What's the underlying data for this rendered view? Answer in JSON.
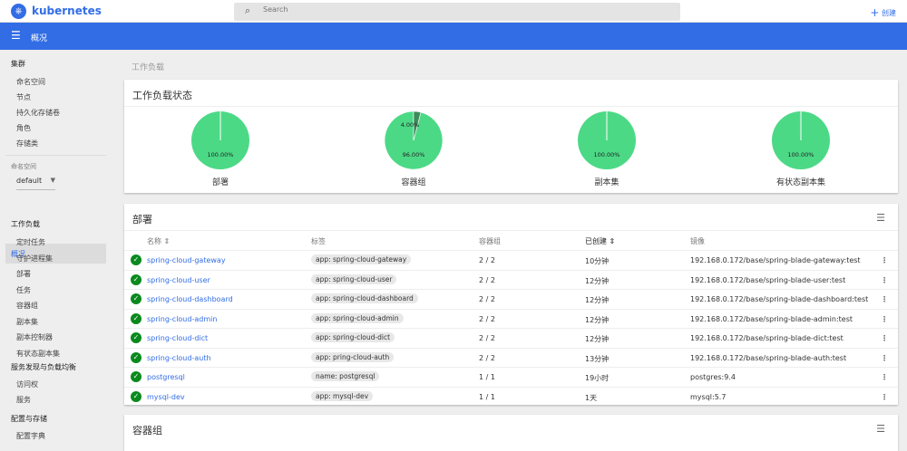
{
  "header": {
    "brand": "kubernetes",
    "search_placeholder": "Search",
    "create_label": "创建",
    "page_title": "概况"
  },
  "sidebar": {
    "cluster_heading": "集群",
    "cluster_items": [
      "命名空间",
      "节点",
      "持久化存储卷",
      "角色",
      "存储类"
    ],
    "namespace_label": "命名空间",
    "namespace_value": "default",
    "overview": "概况",
    "workloads_heading": "工作负载",
    "workload_items": [
      "定时任务",
      "守护进程集",
      "部署",
      "任务",
      "容器组",
      "副本集",
      "副本控制器",
      "有状态副本集"
    ],
    "discovery_heading": "服务发现与负载均衡",
    "discovery_items": [
      "访问权",
      "服务"
    ],
    "config_heading": "配置与存储",
    "config_items": [
      "配置字典"
    ]
  },
  "breadcrumb": "工作负载",
  "status_card": {
    "title": "工作负载状态",
    "charts": [
      {
        "label": "部署",
        "slices": [
          {
            "value": 100,
            "text": "100.00%",
            "color": "#4cd986"
          }
        ]
      },
      {
        "label": "容器组",
        "slices": [
          {
            "value": 96,
            "text": "96.00%",
            "color": "#4cd986"
          },
          {
            "value": 4,
            "text": "4.00%",
            "color": "#3d8b5a"
          }
        ]
      },
      {
        "label": "副本集",
        "slices": [
          {
            "value": 100,
            "text": "100.00%",
            "color": "#4cd986"
          }
        ]
      },
      {
        "label": "有状态副本集",
        "slices": [
          {
            "value": 100,
            "text": "100.00%",
            "color": "#4cd986"
          }
        ]
      }
    ]
  },
  "deployments": {
    "title": "部署",
    "columns": [
      "名称",
      "标签",
      "容器组",
      "已创建",
      "镜像"
    ],
    "rows": [
      {
        "name": "spring-cloud-gateway",
        "label": "app: spring-cloud-gateway",
        "pods": "2 / 2",
        "created": "10分钟",
        "image": "192.168.0.172/base/spring-blade-gateway:test"
      },
      {
        "name": "spring-cloud-user",
        "label": "app: spring-cloud-user",
        "pods": "2 / 2",
        "created": "12分钟",
        "image": "192.168.0.172/base/spring-blade-user:test"
      },
      {
        "name": "spring-cloud-dashboard",
        "label": "app: spring-cloud-dashboard",
        "pods": "2 / 2",
        "created": "12分钟",
        "image": "192.168.0.172/base/spring-blade-dashboard:test"
      },
      {
        "name": "spring-cloud-admin",
        "label": "app: spring-cloud-admin",
        "pods": "2 / 2",
        "created": "12分钟",
        "image": "192.168.0.172/base/spring-blade-admin:test"
      },
      {
        "name": "spring-cloud-dict",
        "label": "app: spring-cloud-dict",
        "pods": "2 / 2",
        "created": "12分钟",
        "image": "192.168.0.172/base/spring-blade-dict:test"
      },
      {
        "name": "spring-cloud-auth",
        "label": "app: pring-cloud-auth",
        "pods": "2 / 2",
        "created": "13分钟",
        "image": "192.168.0.172/base/spring-blade-auth:test"
      },
      {
        "name": "postgresql",
        "label": "name: postgresql",
        "pods": "1 / 1",
        "created": "19小时",
        "image": "postgres:9.4"
      },
      {
        "name": "mysql-dev",
        "label": "app: mysql-dev",
        "pods": "1 / 1",
        "created": "1天",
        "image": "mysql:5.7"
      }
    ]
  },
  "pods_card": {
    "title": "容器组"
  }
}
